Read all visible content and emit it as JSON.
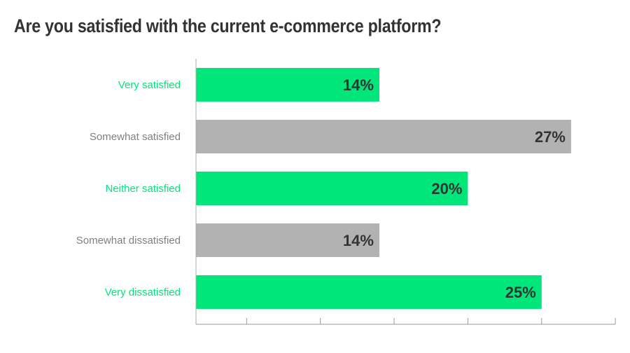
{
  "chart_data": {
    "type": "bar",
    "orientation": "horizontal",
    "title": "Are you satisfied with the current e-commerce platform?",
    "categories": [
      "Very satisfied",
      "Somewhat satisfied",
      "Neither satisfied",
      "Somewhat dissatisfied",
      "Very dissatisfied"
    ],
    "values": [
      14,
      27,
      20,
      14,
      25
    ],
    "value_labels": [
      "14%",
      "27%",
      "20%",
      "14%",
      "25%"
    ],
    "colors": [
      "#00e67a",
      "#b2b2b2",
      "#00e67a",
      "#b2b2b2",
      "#00e67a"
    ],
    "label_colors": [
      "#00e67a",
      "#808080",
      "#00e67a",
      "#808080",
      "#00e67a"
    ],
    "xlim": [
      0,
      30
    ],
    "xticks": [
      5,
      10,
      15,
      20,
      25,
      30
    ],
    "xlabel": "",
    "ylabel": "",
    "grid": false,
    "legend": "none"
  }
}
